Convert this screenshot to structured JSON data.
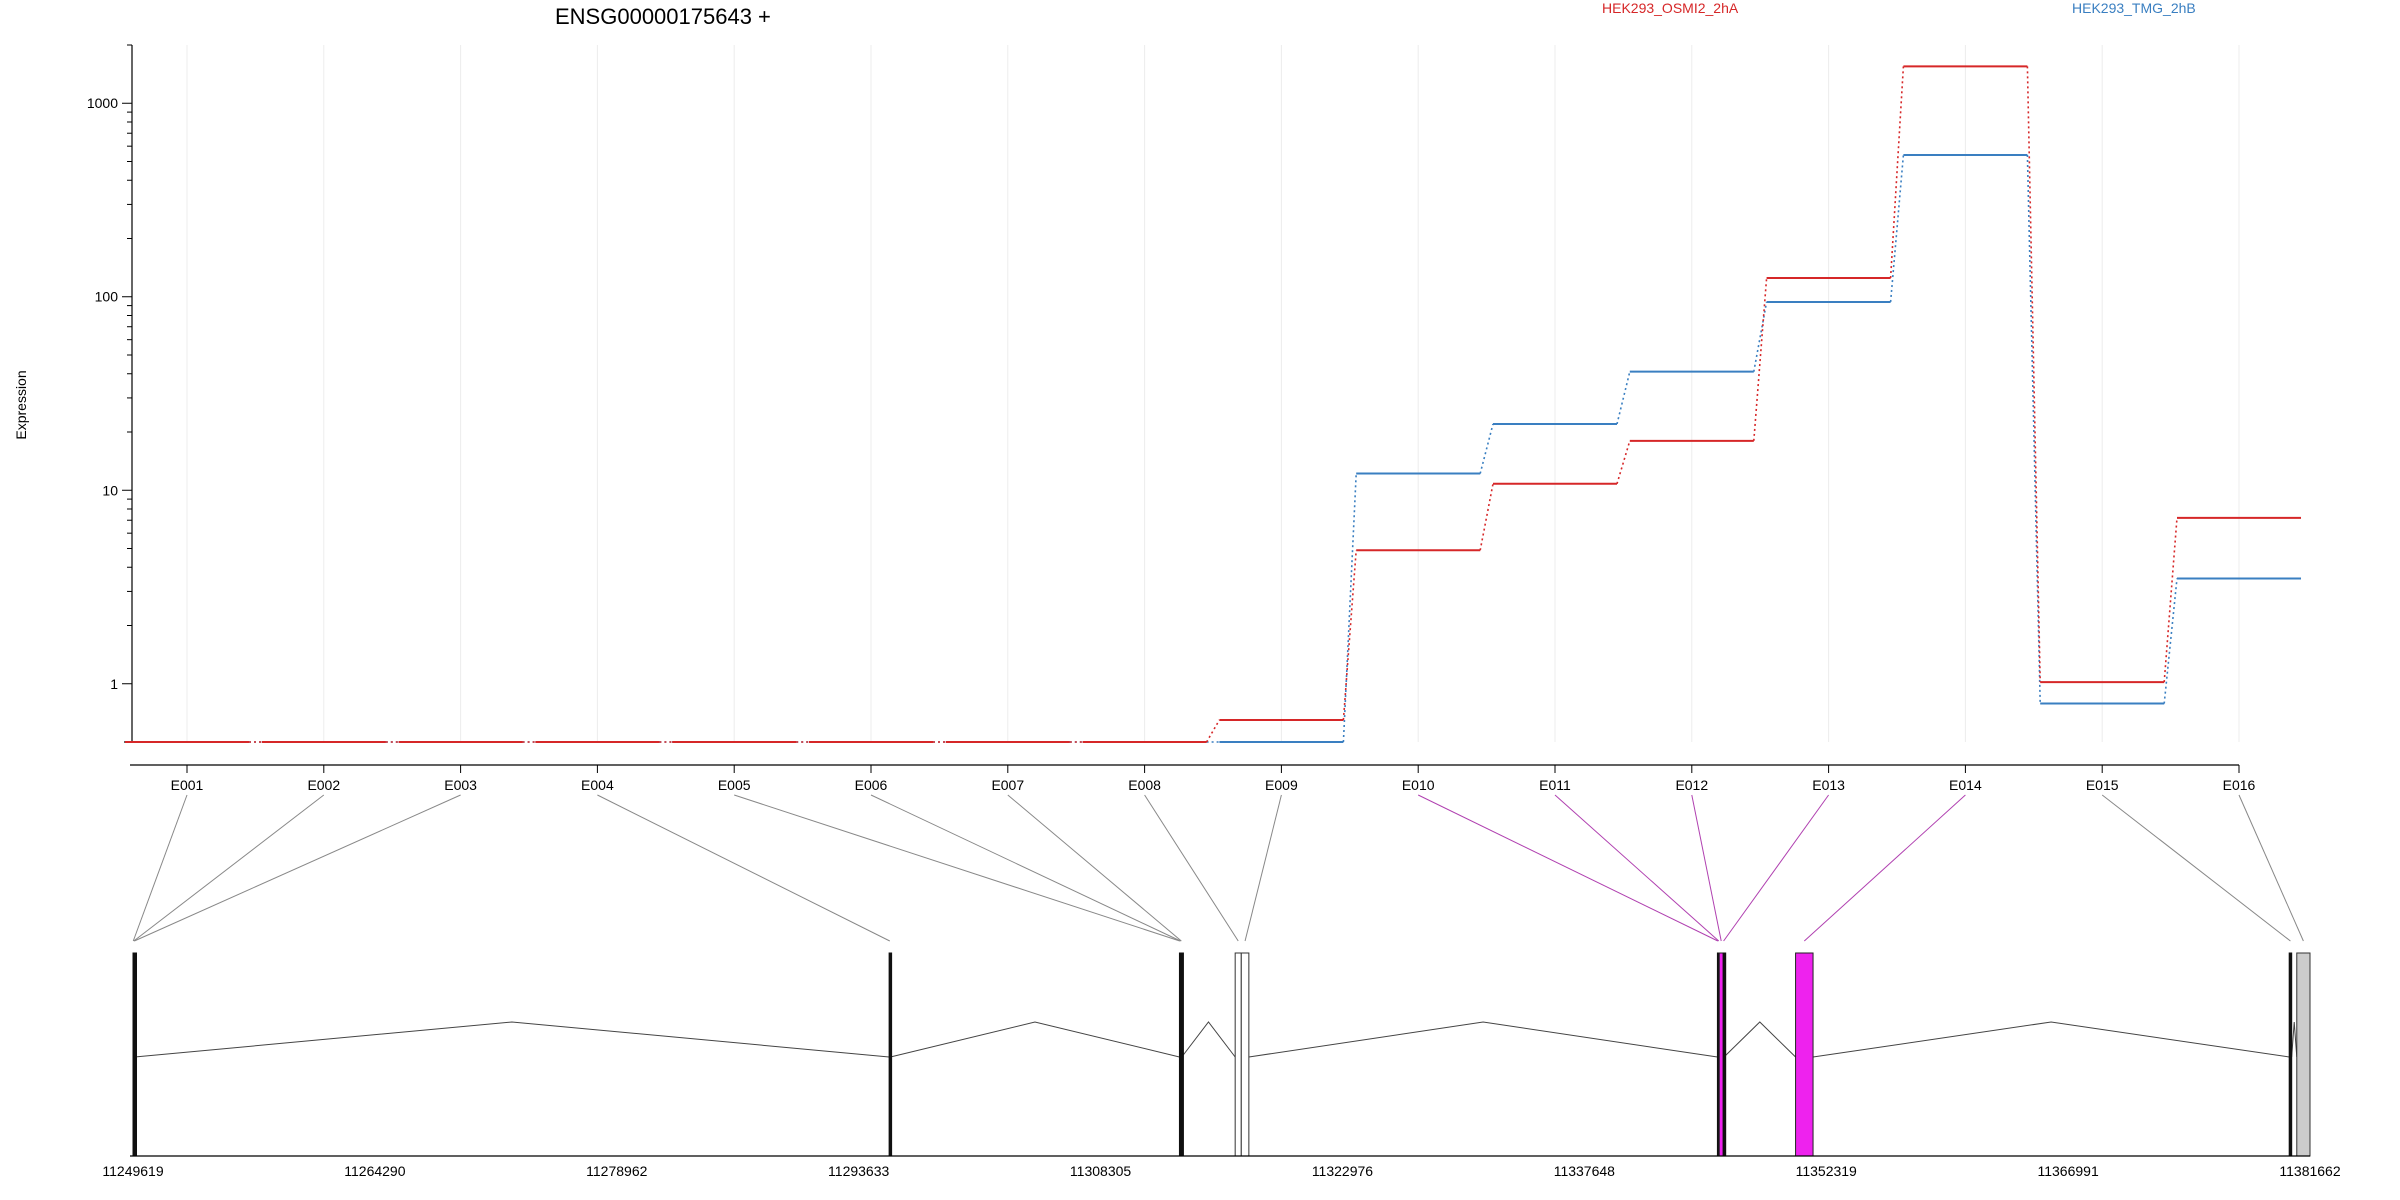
{
  "chart_data": {
    "type": "line",
    "title": "ENSG00000175643 +",
    "ylabel": "Expression",
    "yscale": "log",
    "ylim": [
      0.5,
      2000
    ],
    "yticks": [
      1,
      10,
      100,
      1000
    ],
    "ytick_labels": [
      "1",
      "10",
      "100",
      "1000"
    ],
    "grid": true,
    "legend_position": "top",
    "categories": [
      "E001",
      "E002",
      "E003",
      "E004",
      "E005",
      "E006",
      "E007",
      "E008",
      "E009",
      "E010",
      "E011",
      "E012",
      "E013",
      "E014",
      "E015",
      "E016"
    ],
    "series": [
      {
        "name": "HEK293_OSMI2_2hA",
        "color": "#d62728",
        "values": [
          0.5,
          0.5,
          0.5,
          0.5,
          0.5,
          0.5,
          0.5,
          0.5,
          0.65,
          4.9,
          10.8,
          18,
          125,
          1550,
          1.02,
          7.2
        ]
      },
      {
        "name": "HEK293_TMG_2hB",
        "color": "#3a7fc1",
        "values": [
          0.5,
          0.5,
          0.5,
          0.5,
          0.5,
          0.5,
          0.5,
          0.5,
          0.5,
          12.2,
          22,
          41,
          94,
          540,
          0.79,
          3.5
        ]
      }
    ],
    "gene_model": {
      "coordinate_labels": [
        "11249619",
        "11264290",
        "11278962",
        "11293633",
        "11308305",
        "11322976",
        "11337648",
        "11352319",
        "11366991",
        "11381662"
      ],
      "coord_range": [
        11249619,
        11381662
      ],
      "highlight_color": "#ee22ee",
      "exons": [
        {
          "id": "E001",
          "start": 11249619,
          "end": 11249650,
          "style": "black"
        },
        {
          "id": "E002",
          "start": 11249650,
          "end": 11249680,
          "style": "black"
        },
        {
          "id": "E003",
          "start": 11249680,
          "end": 11249720,
          "style": "black"
        },
        {
          "id": "E004",
          "start": 11295480,
          "end": 11295560,
          "style": "black"
        },
        {
          "id": "E005",
          "start": 11313090,
          "end": 11313130,
          "style": "black"
        },
        {
          "id": "E006",
          "start": 11313130,
          "end": 11313180,
          "style": "black"
        },
        {
          "id": "E007",
          "start": 11313180,
          "end": 11313230,
          "style": "black"
        },
        {
          "id": "E008",
          "start": 11316470,
          "end": 11316840,
          "style": "white"
        },
        {
          "id": "E009",
          "start": 11316840,
          "end": 11317300,
          "style": "white"
        },
        {
          "id": "E010",
          "start": 11345720,
          "end": 11345770,
          "style": "black"
        },
        {
          "id": "E011",
          "start": 11345770,
          "end": 11345830,
          "style": "black"
        },
        {
          "id": "E012",
          "start": 11345830,
          "end": 11346070,
          "style": "highlight"
        },
        {
          "id": "E013",
          "start": 11346070,
          "end": 11346120,
          "style": "black"
        },
        {
          "id": "E014",
          "start": 11350460,
          "end": 11351520,
          "style": "highlight"
        },
        {
          "id": "E015",
          "start": 11380400,
          "end": 11380550,
          "style": "black"
        },
        {
          "id": "E016",
          "start": 11380860,
          "end": 11381662,
          "style": "grey"
        }
      ]
    }
  }
}
